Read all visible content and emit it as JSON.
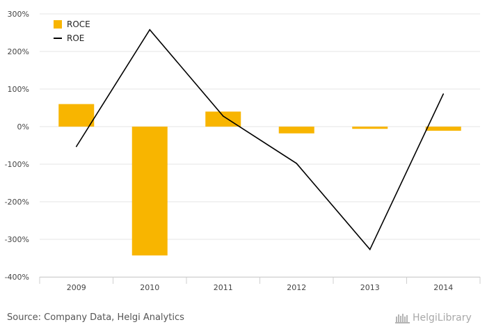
{
  "chart_data": {
    "type": "bar",
    "categories": [
      "2009",
      "2010",
      "2011",
      "2012",
      "2013",
      "2014"
    ],
    "series": [
      {
        "name": "ROCE",
        "type": "bar",
        "color": "#F8B500",
        "values": [
          60,
          -343,
          40,
          -18,
          -6,
          -11
        ]
      },
      {
        "name": "ROE",
        "type": "line",
        "color": "#000000",
        "values": [
          -53,
          258,
          28,
          -98,
          -327,
          87
        ]
      }
    ],
    "y_ticks": [
      "300%",
      "200%",
      "100%",
      "0%",
      "-100%",
      "-200%",
      "-300%",
      "-400%"
    ],
    "ylim": [
      -400,
      300
    ],
    "grid": true,
    "legend_position": "top-left",
    "xlabel": "",
    "ylabel": ""
  },
  "footer": {
    "source": "Source: Company Data, Helgi Analytics",
    "logo_text": "HelgiLibrary"
  }
}
